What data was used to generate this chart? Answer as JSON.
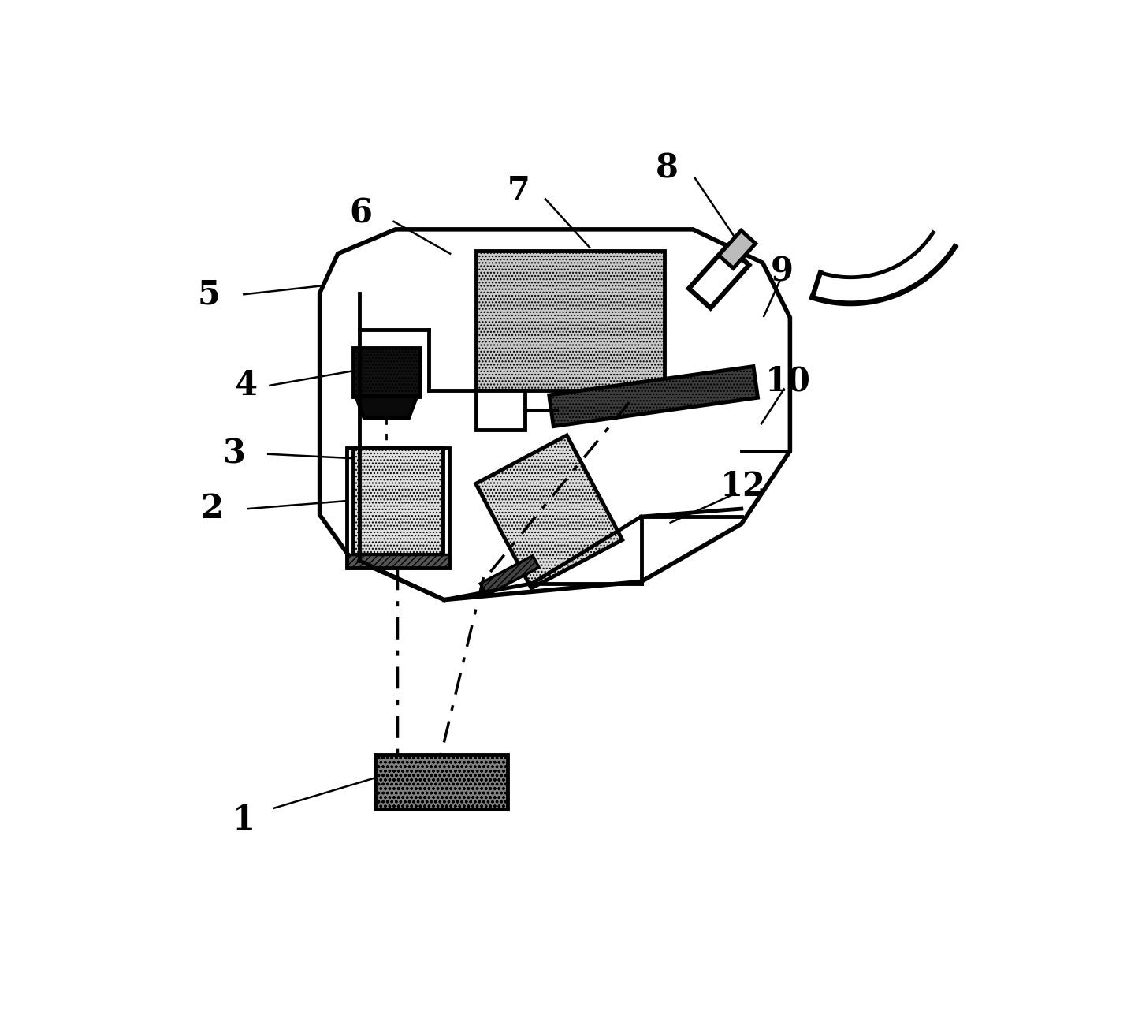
{
  "bg_color": "#ffffff",
  "lc": "#000000",
  "lw": 3.5,
  "label_fontsize": 30
}
